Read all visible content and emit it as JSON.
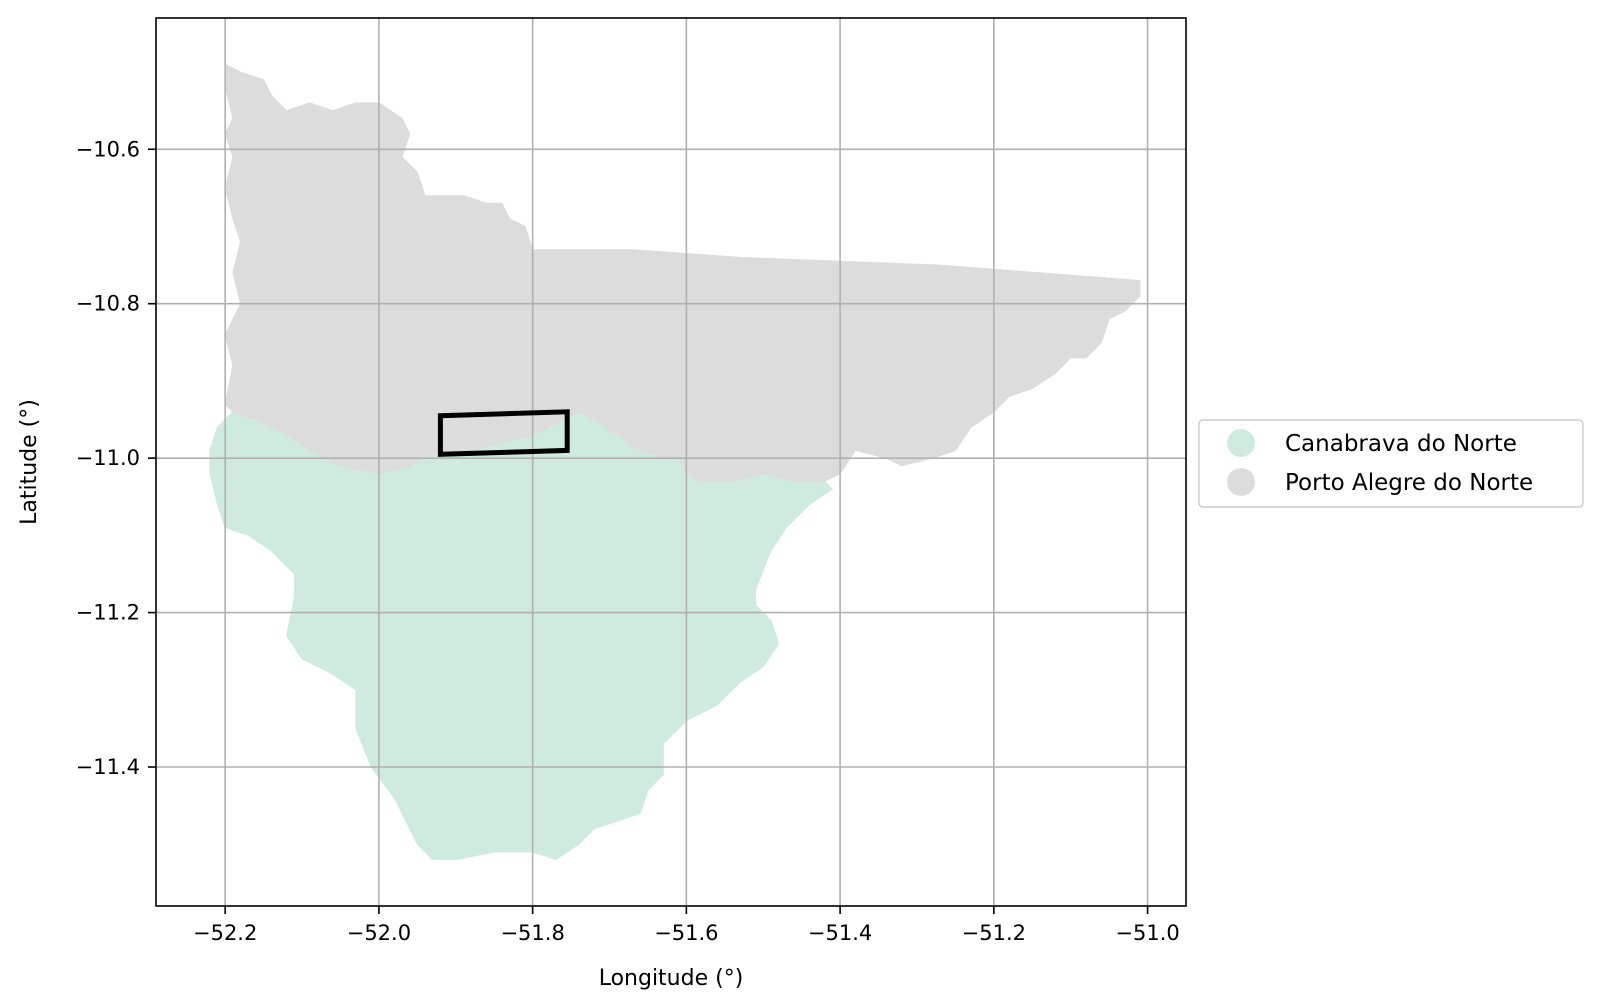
{
  "chart_data": {
    "type": "map",
    "xlabel": "Longitude (°)",
    "ylabel": "Latitude (°)",
    "xlim": [
      -52.29,
      -50.95
    ],
    "ylim": [
      -11.58,
      -10.43
    ],
    "grid": true,
    "x_ticks": [
      {
        "value": -52.2,
        "label": "−52.2"
      },
      {
        "value": -52.0,
        "label": "−52.0"
      },
      {
        "value": -51.8,
        "label": "−51.8"
      },
      {
        "value": -51.6,
        "label": "−51.6"
      },
      {
        "value": -51.4,
        "label": "−51.4"
      },
      {
        "value": -51.2,
        "label": "−51.2"
      },
      {
        "value": -51.0,
        "label": "−51.0"
      }
    ],
    "y_ticks": [
      {
        "value": -10.6,
        "label": "−10.6"
      },
      {
        "value": -10.8,
        "label": "−10.8"
      },
      {
        "value": -11.0,
        "label": "−11.0"
      },
      {
        "value": -11.2,
        "label": "−11.2"
      },
      {
        "value": -11.4,
        "label": "−11.4"
      }
    ],
    "legend_position": "outside-right",
    "regions": [
      {
        "name": "Canabrava do Norte",
        "color": "#cfebdf",
        "boundary": [
          [
            -52.19,
            -10.94
          ],
          [
            -52.16,
            -10.95
          ],
          [
            -52.12,
            -10.97
          ],
          [
            -52.09,
            -10.99
          ],
          [
            -52.05,
            -11.01
          ],
          [
            -52.0,
            -11.02
          ],
          [
            -51.96,
            -11.01
          ],
          [
            -51.94,
            -11.0
          ],
          [
            -51.92,
            -10.99
          ],
          [
            -51.88,
            -10.99
          ],
          [
            -51.84,
            -10.98
          ],
          [
            -51.8,
            -10.97
          ],
          [
            -51.76,
            -10.95
          ],
          [
            -51.74,
            -10.94
          ],
          [
            -51.72,
            -10.95
          ],
          [
            -51.69,
            -10.97
          ],
          [
            -51.66,
            -10.99
          ],
          [
            -51.63,
            -11.0
          ],
          [
            -51.61,
            -11.0
          ],
          [
            -51.6,
            -11.02
          ],
          [
            -51.58,
            -11.03
          ],
          [
            -51.54,
            -11.03
          ],
          [
            -51.5,
            -11.02
          ],
          [
            -51.46,
            -11.03
          ],
          [
            -51.42,
            -11.03
          ],
          [
            -51.41,
            -11.04
          ],
          [
            -51.44,
            -11.06
          ],
          [
            -51.47,
            -11.09
          ],
          [
            -51.49,
            -11.12
          ],
          [
            -51.51,
            -11.17
          ],
          [
            -51.51,
            -11.19
          ],
          [
            -51.49,
            -11.21
          ],
          [
            -51.48,
            -11.24
          ],
          [
            -51.5,
            -11.27
          ],
          [
            -51.53,
            -11.29
          ],
          [
            -51.56,
            -11.32
          ],
          [
            -51.6,
            -11.34
          ],
          [
            -51.63,
            -11.37
          ],
          [
            -51.63,
            -11.41
          ],
          [
            -51.65,
            -11.43
          ],
          [
            -51.66,
            -11.46
          ],
          [
            -51.69,
            -11.47
          ],
          [
            -51.72,
            -11.48
          ],
          [
            -51.74,
            -11.5
          ],
          [
            -51.77,
            -11.52
          ],
          [
            -51.8,
            -11.51
          ],
          [
            -51.85,
            -11.51
          ],
          [
            -51.9,
            -11.52
          ],
          [
            -51.93,
            -11.52
          ],
          [
            -51.95,
            -11.5
          ],
          [
            -51.96,
            -11.48
          ],
          [
            -51.98,
            -11.44
          ],
          [
            -52.01,
            -11.4
          ],
          [
            -52.03,
            -11.35
          ],
          [
            -52.03,
            -11.3
          ],
          [
            -52.06,
            -11.28
          ],
          [
            -52.1,
            -11.26
          ],
          [
            -52.12,
            -11.23
          ],
          [
            -52.11,
            -11.18
          ],
          [
            -52.11,
            -11.15
          ],
          [
            -52.14,
            -11.12
          ],
          [
            -52.17,
            -11.1
          ],
          [
            -52.2,
            -11.09
          ],
          [
            -52.21,
            -11.06
          ],
          [
            -52.22,
            -11.02
          ],
          [
            -52.22,
            -10.99
          ],
          [
            -52.21,
            -10.96
          ]
        ]
      },
      {
        "name": "Porto Alegre do Norte",
        "color": "#dcdcdc",
        "boundary": [
          [
            -52.2,
            -10.49
          ],
          [
            -52.18,
            -10.5
          ],
          [
            -52.15,
            -10.51
          ],
          [
            -52.14,
            -10.53
          ],
          [
            -52.12,
            -10.55
          ],
          [
            -52.09,
            -10.54
          ],
          [
            -52.06,
            -10.55
          ],
          [
            -52.03,
            -10.54
          ],
          [
            -52.0,
            -10.54
          ],
          [
            -51.97,
            -10.56
          ],
          [
            -51.96,
            -10.58
          ],
          [
            -51.97,
            -10.61
          ],
          [
            -51.95,
            -10.63
          ],
          [
            -51.94,
            -10.66
          ],
          [
            -51.92,
            -10.66
          ],
          [
            -51.89,
            -10.66
          ],
          [
            -51.86,
            -10.67
          ],
          [
            -51.84,
            -10.67
          ],
          [
            -51.83,
            -10.69
          ],
          [
            -51.81,
            -10.7
          ],
          [
            -51.8,
            -10.73
          ],
          [
            -51.67,
            -10.73
          ],
          [
            -51.53,
            -10.74
          ],
          [
            -51.27,
            -10.75
          ],
          [
            -51.01,
            -10.77
          ],
          [
            -51.01,
            -10.79
          ],
          [
            -51.03,
            -10.81
          ],
          [
            -51.05,
            -10.82
          ],
          [
            -51.06,
            -10.85
          ],
          [
            -51.08,
            -10.87
          ],
          [
            -51.1,
            -10.87
          ],
          [
            -51.12,
            -10.89
          ],
          [
            -51.15,
            -10.91
          ],
          [
            -51.18,
            -10.92
          ],
          [
            -51.2,
            -10.94
          ],
          [
            -51.23,
            -10.96
          ],
          [
            -51.25,
            -10.99
          ],
          [
            -51.28,
            -11.0
          ],
          [
            -51.32,
            -11.01
          ],
          [
            -51.34,
            -11.0
          ],
          [
            -51.38,
            -10.99
          ],
          [
            -51.4,
            -11.02
          ],
          [
            -51.42,
            -11.03
          ],
          [
            -51.46,
            -11.03
          ],
          [
            -51.5,
            -11.02
          ],
          [
            -51.54,
            -11.03
          ],
          [
            -51.58,
            -11.03
          ],
          [
            -51.6,
            -11.02
          ],
          [
            -51.61,
            -11.0
          ],
          [
            -51.63,
            -11.0
          ],
          [
            -51.66,
            -10.99
          ],
          [
            -51.69,
            -10.97
          ],
          [
            -51.72,
            -10.95
          ],
          [
            -51.74,
            -10.94
          ],
          [
            -51.76,
            -10.95
          ],
          [
            -51.8,
            -10.97
          ],
          [
            -51.84,
            -10.98
          ],
          [
            -51.88,
            -10.99
          ],
          [
            -51.92,
            -10.99
          ],
          [
            -51.94,
            -11.0
          ],
          [
            -51.96,
            -11.01
          ],
          [
            -52.0,
            -11.02
          ],
          [
            -52.05,
            -11.01
          ],
          [
            -52.09,
            -10.99
          ],
          [
            -52.12,
            -10.97
          ],
          [
            -52.16,
            -10.95
          ],
          [
            -52.19,
            -10.94
          ],
          [
            -52.2,
            -10.93
          ],
          [
            -52.19,
            -10.88
          ],
          [
            -52.2,
            -10.84
          ],
          [
            -52.18,
            -10.8
          ],
          [
            -52.19,
            -10.76
          ],
          [
            -52.18,
            -10.72
          ],
          [
            -52.19,
            -10.69
          ],
          [
            -52.2,
            -10.65
          ],
          [
            -52.19,
            -10.61
          ],
          [
            -52.2,
            -10.58
          ],
          [
            -52.19,
            -10.56
          ],
          [
            -52.2,
            -10.52
          ]
        ]
      }
    ],
    "highlight_box": [
      [
        -51.92,
        -10.945
      ],
      [
        -51.755,
        -10.94
      ],
      [
        -51.755,
        -10.99
      ],
      [
        -51.92,
        -10.995
      ]
    ]
  }
}
